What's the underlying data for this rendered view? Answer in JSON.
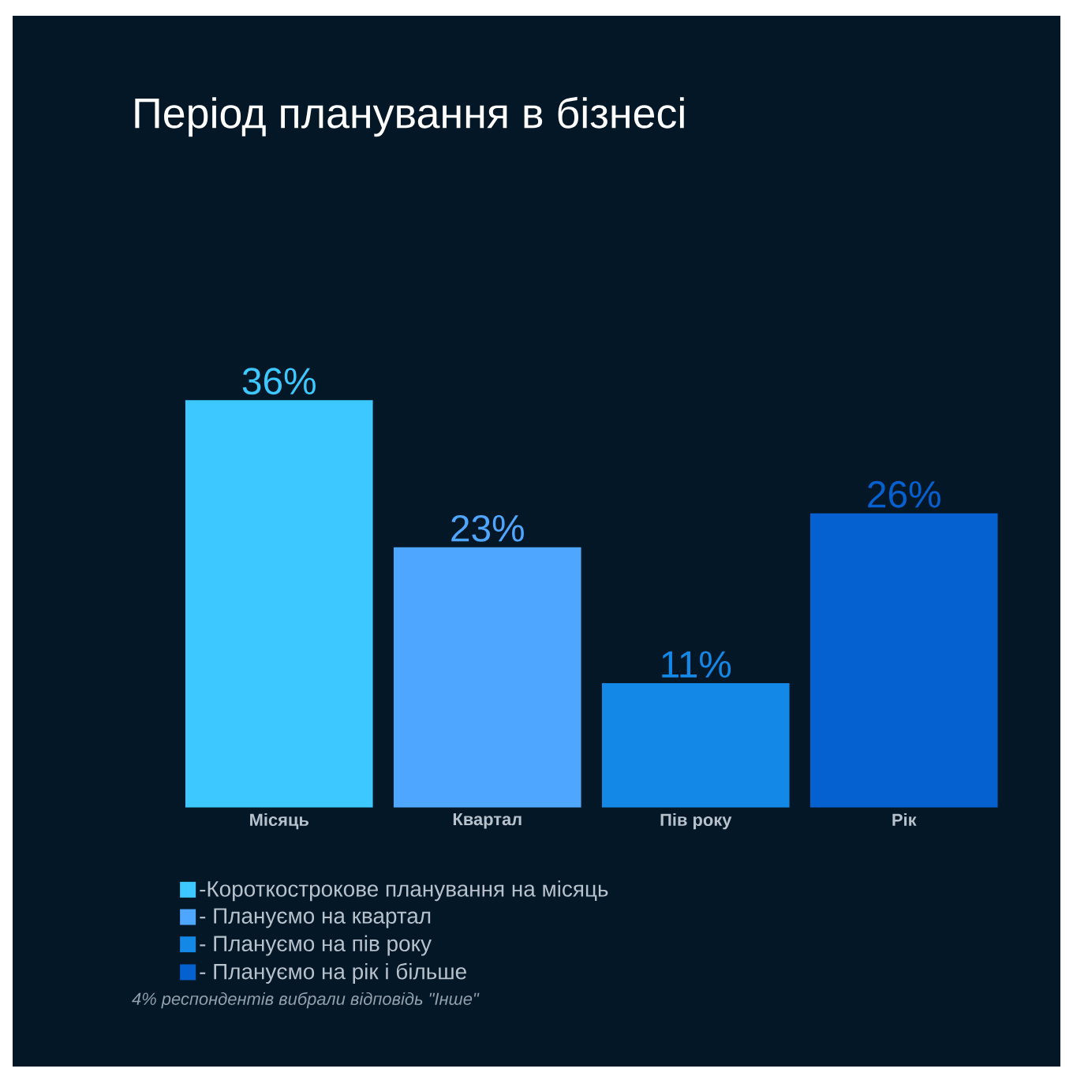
{
  "chart_data": {
    "type": "bar",
    "title": "Період планування в бізнесі",
    "categories": [
      "Місяць",
      "Квартал",
      "Пів року",
      "Рік"
    ],
    "series": [
      {
        "name": "-Короткострокове планування на місяць",
        "color": "#3dc8ff",
        "values": [
          36,
          null,
          null,
          null
        ],
        "value_labels": [
          "36%",
          null,
          null,
          null
        ]
      },
      {
        "name": "- Плануємо на квартал",
        "color": "#4fa6ff",
        "values": [
          null,
          23,
          null,
          null
        ],
        "value_labels": [
          null,
          "23%",
          null,
          null
        ]
      },
      {
        "name": "- Плануємо на пів року",
        "color": "#1488e6",
        "values": [
          null,
          null,
          11,
          null
        ],
        "value_labels": [
          null,
          null,
          "11%",
          null
        ]
      },
      {
        "name": "- Плануємо на рік і більше",
        "color": "#0560d0",
        "values": [
          null,
          null,
          null,
          26
        ],
        "value_labels": [
          null,
          null,
          null,
          "26%"
        ]
      }
    ],
    "legend": "bottom",
    "annotations": [
      "4% респондентів вибрали відповідь \"Інше\""
    ]
  }
}
